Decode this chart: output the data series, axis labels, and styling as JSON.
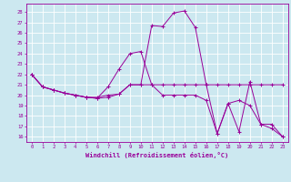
{
  "xlabel": "Windchill (Refroidissement éolien,°C)",
  "bg_color": "#cce8f0",
  "line_color": "#990099",
  "grid_color": "#ffffff",
  "ylim": [
    15.5,
    28.8
  ],
  "xlim": [
    -0.5,
    23.5
  ],
  "yticks": [
    16,
    17,
    18,
    19,
    20,
    21,
    22,
    23,
    24,
    25,
    26,
    27,
    28
  ],
  "xticks": [
    0,
    1,
    2,
    3,
    4,
    5,
    6,
    7,
    8,
    9,
    10,
    11,
    12,
    13,
    14,
    15,
    16,
    17,
    18,
    19,
    20,
    21,
    22,
    23
  ],
  "series": [
    [
      22.0,
      20.8,
      20.5,
      20.2,
      20.0,
      19.8,
      19.8,
      20.0,
      20.1,
      21.0,
      21.0,
      21.0,
      21.0,
      21.0,
      21.0,
      21.0,
      21.0,
      21.0,
      21.0,
      21.0,
      21.0,
      21.0,
      21.0,
      21.0
    ],
    [
      22.0,
      20.8,
      20.5,
      20.2,
      20.0,
      19.8,
      19.7,
      19.8,
      20.1,
      21.0,
      21.0,
      26.7,
      26.6,
      27.9,
      28.1,
      26.5,
      21.0,
      16.3,
      19.2,
      16.5,
      21.3,
      17.2,
      16.8,
      16.0
    ],
    [
      22.0,
      20.8,
      20.5,
      20.2,
      20.0,
      19.8,
      19.7,
      20.8,
      22.5,
      24.0,
      24.2,
      21.0,
      20.0,
      20.0,
      20.0,
      20.0,
      19.5,
      16.3,
      19.2,
      19.5,
      19.0,
      17.2,
      17.2,
      16.0
    ]
  ]
}
